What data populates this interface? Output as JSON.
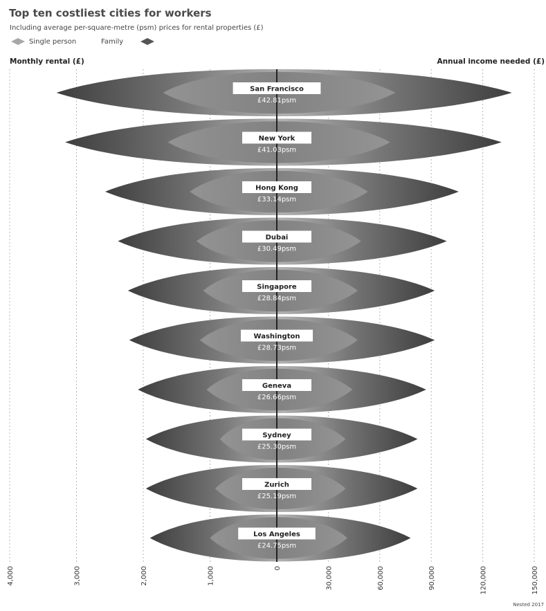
{
  "chart_data": {
    "type": "bar",
    "title": "Top ten costliest cities for workers",
    "subtitle": "Including average per-square-metre (psm) prices for rental properties (£)",
    "legend": [
      {
        "label": "Single person",
        "color": "#a8a8a8"
      },
      {
        "label": "Family",
        "color": "#555555"
      }
    ],
    "left_axis": {
      "title": "Monthly rental (£)",
      "range": [
        0,
        4000
      ],
      "ticks": [
        0,
        1000,
        2000,
        3000,
        4000
      ],
      "tick_labels": [
        "0",
        "1,000",
        "2,000",
        "3,000",
        "4,000"
      ]
    },
    "right_axis": {
      "title": "Annual income needed (£)",
      "range": [
        0,
        150000
      ],
      "ticks": [
        30000,
        60000,
        90000,
        120000,
        150000
      ],
      "tick_labels": [
        "30,000",
        "60,000",
        "90,000",
        "120,000",
        "150,000"
      ]
    },
    "categories": [
      "San Francisco",
      "New York",
      "Hong Kong",
      "Dubai",
      "Singapore",
      "Washington",
      "Geneva",
      "Sydney",
      "Zurich",
      "Los Angeles"
    ],
    "psm_labels": [
      "£42.81psm",
      "£41.03psm",
      "£33.14psm",
      "£30.49psm",
      "£28.84psm",
      "£28.73psm",
      "£26.66psm",
      "£25.30psm",
      "£25.19psm",
      "£24.75psm"
    ],
    "series": [
      {
        "name": "Single person",
        "monthly_rental": [
          1700,
          1630,
          1300,
          1200,
          1100,
          1150,
          1050,
          850,
          920,
          1000
        ],
        "annual_income": [
          69000,
          66000,
          53000,
          49000,
          47000,
          47000,
          44000,
          40000,
          40000,
          41000
        ]
      },
      {
        "name": "Family",
        "monthly_rental": [
          3300,
          3170,
          2570,
          2380,
          2230,
          2210,
          2080,
          1960,
          1960,
          1900
        ],
        "annual_income": [
          137000,
          131000,
          106000,
          99000,
          92000,
          92000,
          87000,
          82000,
          82000,
          78000
        ]
      }
    ],
    "grid": true,
    "legend_position": "top-left"
  },
  "source": "Nested 2017"
}
